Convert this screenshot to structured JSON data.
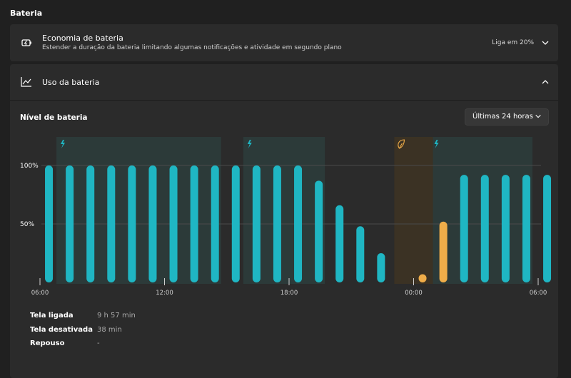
{
  "section_title": "Bateria",
  "battery_saver": {
    "title": "Economia de bateria",
    "subtitle": "Estender a duração da bateria limitando algumas notificações e atividade em segundo plano",
    "value": "Liga em 20%",
    "icon": "battery-saver-icon"
  },
  "battery_usage": {
    "title": "Uso da bateria",
    "icon": "line-chart-icon",
    "chart_title": "Nível de bateria",
    "range_dropdown": "Últimas 24 horas"
  },
  "chart_data": {
    "type": "bar",
    "y_ticks": [
      "100%",
      "50%"
    ],
    "y_tick_values": [
      100,
      50
    ],
    "x_ticks": [
      "06:00",
      "12:00",
      "18:00",
      "00:00",
      "06:00"
    ],
    "ylim": [
      0,
      110
    ],
    "slots": 24,
    "values": [
      100,
      100,
      100,
      100,
      100,
      100,
      100,
      100,
      100,
      100,
      100,
      100,
      100,
      87,
      66,
      48,
      25,
      null,
      7,
      52,
      92,
      92,
      92,
      92,
      92
    ],
    "saver_bars": [
      18,
      19
    ],
    "charging_periods": [
      [
        1,
        9
      ],
      [
        10,
        14
      ],
      [
        19,
        24
      ]
    ],
    "saver_periods": [
      [
        17,
        19
      ]
    ],
    "colors": {
      "bar": "#1fb6c3",
      "saver_bar": "#f0ad49",
      "charging_band": "#2c3a39",
      "saver_band": "#3b3224",
      "gridline": "#4a4a4a"
    }
  },
  "stats": [
    {
      "label": "Tela ligada",
      "value": "9 h 57 min"
    },
    {
      "label": "Tela desativada",
      "value": "38 min"
    },
    {
      "label": "Repouso",
      "value": "-"
    }
  ]
}
